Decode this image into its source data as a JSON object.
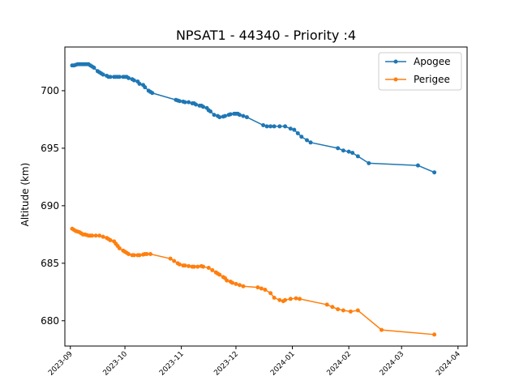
{
  "chart_data": {
    "type": "line",
    "title": "NPSAT1 - 44340 - Priority :4",
    "xlabel": "",
    "ylabel": "Altitude (km)",
    "x_type": "date",
    "xlim": [
      "2023-08-29",
      "2024-04-06"
    ],
    "ylim": [
      677.8,
      703.8
    ],
    "x_ticks": [
      "2023-09",
      "2023-10",
      "2023-11",
      "2023-12",
      "2024-01",
      "2024-02",
      "2024-03",
      "2024-04"
    ],
    "y_ticks": [
      680,
      685,
      690,
      695,
      700
    ],
    "grid": false,
    "legend_position": "top-right",
    "series": [
      {
        "name": "Apogee",
        "color": "#1f77b4",
        "marker": "circle",
        "points": [
          [
            "2023-09-02",
            702.2
          ],
          [
            "2023-09-03",
            702.2
          ],
          [
            "2023-09-04",
            702.25
          ],
          [
            "2023-09-05",
            702.3
          ],
          [
            "2023-09-06",
            702.3
          ],
          [
            "2023-09-07",
            702.3
          ],
          [
            "2023-09-08",
            702.3
          ],
          [
            "2023-09-09",
            702.3
          ],
          [
            "2023-09-10",
            702.3
          ],
          [
            "2023-09-11",
            702.3
          ],
          [
            "2023-09-12",
            702.2
          ],
          [
            "2023-09-13",
            702.1
          ],
          [
            "2023-09-14",
            702.0
          ],
          [
            "2023-09-16",
            701.7
          ],
          [
            "2023-09-17",
            701.6
          ],
          [
            "2023-09-18",
            701.5
          ],
          [
            "2023-09-19",
            701.4
          ],
          [
            "2023-09-21",
            701.3
          ],
          [
            "2023-09-22",
            701.2
          ],
          [
            "2023-09-23",
            701.2
          ],
          [
            "2023-09-25",
            701.2
          ],
          [
            "2023-09-26",
            701.2
          ],
          [
            "2023-09-27",
            701.2
          ],
          [
            "2023-09-28",
            701.2
          ],
          [
            "2023-09-30",
            701.2
          ],
          [
            "2023-10-01",
            701.2
          ],
          [
            "2023-10-02",
            701.2
          ],
          [
            "2023-10-03",
            701.1
          ],
          [
            "2023-10-05",
            701.0
          ],
          [
            "2023-10-06",
            700.9
          ],
          [
            "2023-10-08",
            700.8
          ],
          [
            "2023-10-09",
            700.6
          ],
          [
            "2023-10-11",
            700.5
          ],
          [
            "2023-10-12",
            700.3
          ],
          [
            "2023-10-14",
            700.0
          ],
          [
            "2023-10-15",
            699.9
          ],
          [
            "2023-10-16",
            699.8
          ],
          [
            "2023-10-29",
            699.2
          ],
          [
            "2023-10-30",
            699.15
          ],
          [
            "2023-10-31",
            699.1
          ],
          [
            "2023-11-02",
            699.05
          ],
          [
            "2023-11-03",
            699.0
          ],
          [
            "2023-11-05",
            699.0
          ],
          [
            "2023-11-07",
            698.9
          ],
          [
            "2023-11-08",
            698.9
          ],
          [
            "2023-11-09",
            698.8
          ],
          [
            "2023-11-11",
            698.7
          ],
          [
            "2023-11-12",
            698.7
          ],
          [
            "2023-11-13",
            698.6
          ],
          [
            "2023-11-15",
            698.5
          ],
          [
            "2023-11-16",
            698.3
          ],
          [
            "2023-11-17",
            698.2
          ],
          [
            "2023-11-19",
            697.9
          ],
          [
            "2023-11-21",
            697.8
          ],
          [
            "2023-11-22",
            697.7
          ],
          [
            "2023-11-24",
            697.75
          ],
          [
            "2023-11-25",
            697.8
          ],
          [
            "2023-11-27",
            697.9
          ],
          [
            "2023-11-28",
            697.95
          ],
          [
            "2023-11-30",
            698.0
          ],
          [
            "2023-12-01",
            698.0
          ],
          [
            "2023-12-02",
            698.0
          ],
          [
            "2023-12-03",
            697.9
          ],
          [
            "2023-12-05",
            697.8
          ],
          [
            "2023-12-07",
            697.7
          ],
          [
            "2023-12-16",
            697.0
          ],
          [
            "2023-12-18",
            696.9
          ],
          [
            "2023-12-20",
            696.9
          ],
          [
            "2023-12-22",
            696.9
          ],
          [
            "2023-12-25",
            696.9
          ],
          [
            "2023-12-28",
            696.9
          ],
          [
            "2023-12-31",
            696.7
          ],
          [
            "2024-01-02",
            696.6
          ],
          [
            "2024-01-04",
            696.3
          ],
          [
            "2024-01-06",
            696.0
          ],
          [
            "2024-01-09",
            695.7
          ],
          [
            "2024-01-11",
            695.5
          ],
          [
            "2024-01-26",
            695.0
          ],
          [
            "2024-01-29",
            694.8
          ],
          [
            "2024-02-01",
            694.7
          ],
          [
            "2024-02-03",
            694.6
          ],
          [
            "2024-02-06",
            694.3
          ],
          [
            "2024-02-12",
            693.7
          ],
          [
            "2024-03-10",
            693.5
          ],
          [
            "2024-03-19",
            692.9
          ]
        ]
      },
      {
        "name": "Perigee",
        "color": "#ff7f0e",
        "marker": "circle",
        "points": [
          [
            "2023-09-02",
            688.0
          ],
          [
            "2023-09-03",
            687.9
          ],
          [
            "2023-09-04",
            687.8
          ],
          [
            "2023-09-05",
            687.75
          ],
          [
            "2023-09-06",
            687.7
          ],
          [
            "2023-09-07",
            687.6
          ],
          [
            "2023-09-08",
            687.5
          ],
          [
            "2023-09-09",
            687.5
          ],
          [
            "2023-09-10",
            687.45
          ],
          [
            "2023-09-11",
            687.4
          ],
          [
            "2023-09-12",
            687.4
          ],
          [
            "2023-09-13",
            687.4
          ],
          [
            "2023-09-15",
            687.4
          ],
          [
            "2023-09-17",
            687.4
          ],
          [
            "2023-09-19",
            687.3
          ],
          [
            "2023-09-21",
            687.2
          ],
          [
            "2023-09-22",
            687.1
          ],
          [
            "2023-09-23",
            687.0
          ],
          [
            "2023-09-25",
            686.9
          ],
          [
            "2023-09-26",
            686.7
          ],
          [
            "2023-09-27",
            686.5
          ],
          [
            "2023-09-28",
            686.3
          ],
          [
            "2023-09-30",
            686.1
          ],
          [
            "2023-10-01",
            686.0
          ],
          [
            "2023-10-02",
            685.9
          ],
          [
            "2023-10-03",
            685.8
          ],
          [
            "2023-10-05",
            685.7
          ],
          [
            "2023-10-06",
            685.7
          ],
          [
            "2023-10-08",
            685.7
          ],
          [
            "2023-10-09",
            685.7
          ],
          [
            "2023-10-11",
            685.75
          ],
          [
            "2023-10-12",
            685.8
          ],
          [
            "2023-10-13",
            685.8
          ],
          [
            "2023-10-15",
            685.8
          ],
          [
            "2023-10-26",
            685.4
          ],
          [
            "2023-10-28",
            685.2
          ],
          [
            "2023-10-30",
            685.0
          ],
          [
            "2023-10-31",
            684.9
          ],
          [
            "2023-11-02",
            684.8
          ],
          [
            "2023-11-03",
            684.8
          ],
          [
            "2023-11-05",
            684.75
          ],
          [
            "2023-11-07",
            684.7
          ],
          [
            "2023-11-08",
            684.7
          ],
          [
            "2023-11-10",
            684.7
          ],
          [
            "2023-11-12",
            684.75
          ],
          [
            "2023-11-13",
            684.7
          ],
          [
            "2023-11-16",
            684.6
          ],
          [
            "2023-11-18",
            684.4
          ],
          [
            "2023-11-20",
            684.2
          ],
          [
            "2023-11-21",
            684.1
          ],
          [
            "2023-11-22",
            684.0
          ],
          [
            "2023-11-24",
            683.8
          ],
          [
            "2023-11-25",
            683.7
          ],
          [
            "2023-11-26",
            683.5
          ],
          [
            "2023-11-28",
            683.4
          ],
          [
            "2023-11-29",
            683.3
          ],
          [
            "2023-12-01",
            683.2
          ],
          [
            "2023-12-03",
            683.1
          ],
          [
            "2023-12-05",
            683.0
          ],
          [
            "2023-12-13",
            682.9
          ],
          [
            "2023-12-15",
            682.8
          ],
          [
            "2023-12-17",
            682.7
          ],
          [
            "2023-12-20",
            682.4
          ],
          [
            "2023-12-22",
            682.0
          ],
          [
            "2023-12-25",
            681.8
          ],
          [
            "2023-12-27",
            681.7
          ],
          [
            "2023-12-28",
            681.8
          ],
          [
            "2023-12-31",
            681.9
          ],
          [
            "2024-01-03",
            681.95
          ],
          [
            "2024-01-05",
            681.9
          ],
          [
            "2024-01-20",
            681.4
          ],
          [
            "2024-01-23",
            681.2
          ],
          [
            "2024-01-26",
            681.0
          ],
          [
            "2024-01-29",
            680.9
          ],
          [
            "2024-02-02",
            680.8
          ],
          [
            "2024-02-06",
            680.9
          ],
          [
            "2024-02-19",
            679.2
          ],
          [
            "2024-03-19",
            678.8
          ]
        ]
      }
    ]
  }
}
